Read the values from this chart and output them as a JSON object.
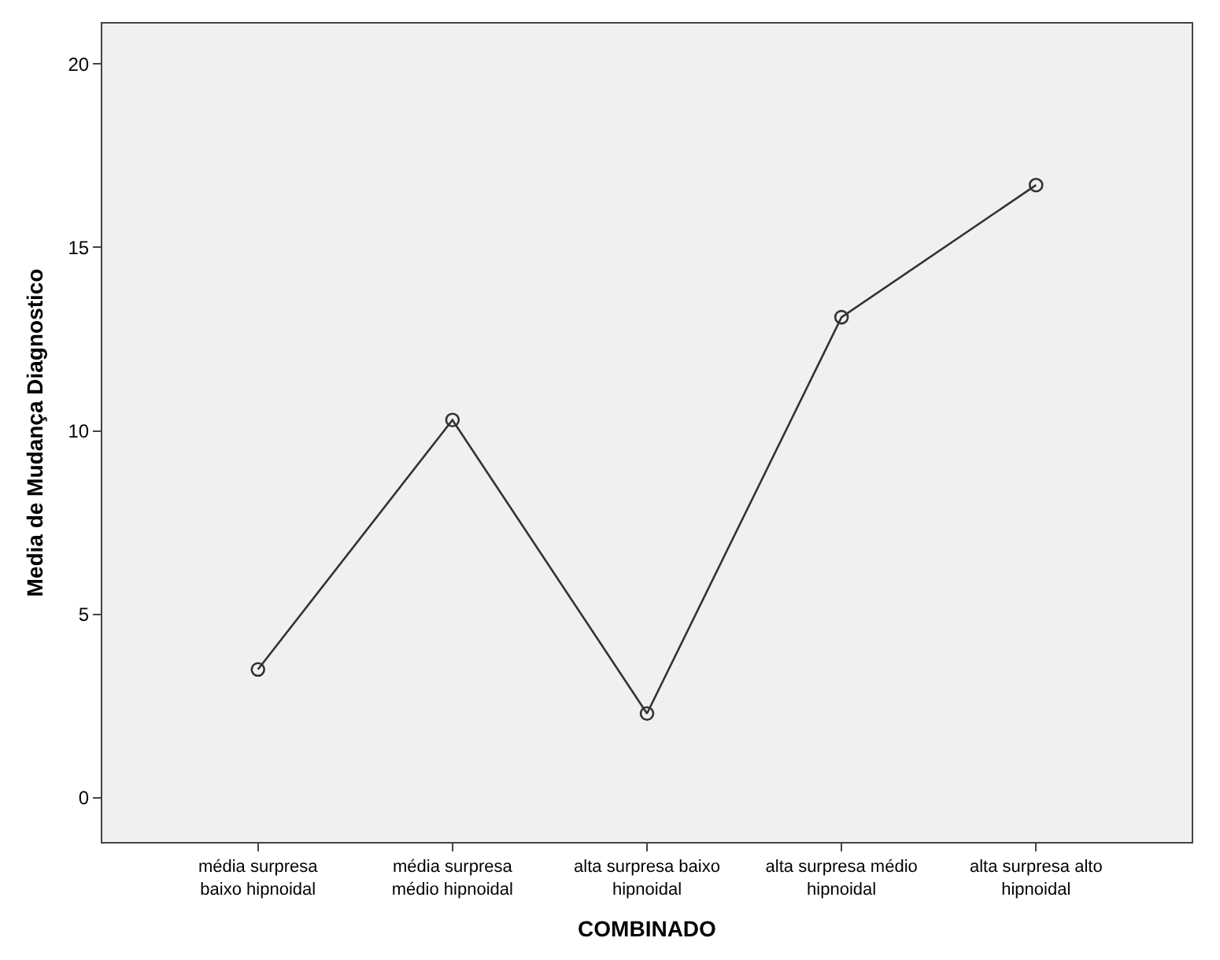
{
  "chart_data": {
    "type": "line",
    "xlabel": "COMBINADO",
    "ylabel": "Media de Mudança Diagnostico",
    "categories": [
      "média surpresa baixo hipnoidal",
      "média surpresa médio hipnoidal",
      "alta surpresa baixo hipnoidal",
      "alta surpresa médio hipnoidal",
      "alta surpresa alto hipnoidal"
    ],
    "series": [
      {
        "color": "#333333",
        "values": [
          3.5,
          10.3,
          2.3,
          13.1,
          16.7
        ]
      }
    ],
    "ylim": [
      -1.2,
      21.1
    ],
    "yticks": [
      0,
      5,
      10,
      15,
      20
    ],
    "grid": false,
    "marker": "circle",
    "line_style": "solid"
  }
}
